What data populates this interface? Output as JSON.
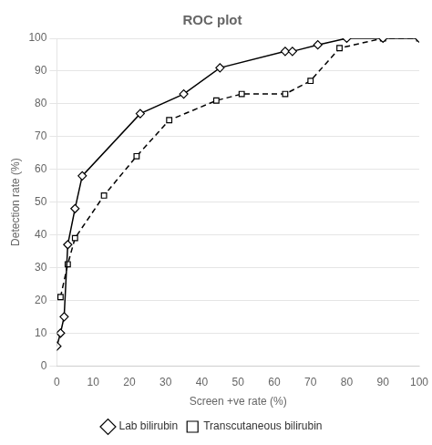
{
  "chart_data": {
    "type": "line",
    "title": "ROC plot",
    "xlabel": "Screen +ve rate (%)",
    "ylabel": "Detection rate (%)",
    "series": [
      {
        "name": "Lab bilirubin",
        "color": "#000000",
        "marker": "diamond",
        "line_style": "solid",
        "x": [
          0,
          1,
          2,
          3,
          5,
          7,
          23,
          35,
          45,
          63,
          65,
          72,
          80,
          90,
          100
        ],
        "values": [
          6,
          10,
          15,
          37,
          48,
          58,
          77,
          83,
          91,
          96,
          96,
          98,
          100,
          100,
          100
        ]
      },
      {
        "name": "Transcutaneous bilirubin",
        "color": "#000000",
        "marker": "square",
        "line_style": "dashed",
        "x": [
          1,
          3,
          5,
          13,
          22,
          31,
          44,
          51,
          63,
          70,
          78,
          90,
          100
        ],
        "values": [
          21,
          31,
          39,
          52,
          64,
          75,
          81,
          83,
          83,
          87,
          97,
          100,
          100
        ]
      }
    ],
    "xlim": [
      0,
      100
    ],
    "ylim": [
      0,
      100
    ],
    "xticks": [
      0,
      10,
      20,
      30,
      40,
      50,
      60,
      70,
      80,
      90,
      100
    ],
    "yticks": [
      0,
      10,
      20,
      30,
      40,
      50,
      60,
      70,
      80,
      90,
      100
    ],
    "grid": "y",
    "legend": "bottom"
  }
}
